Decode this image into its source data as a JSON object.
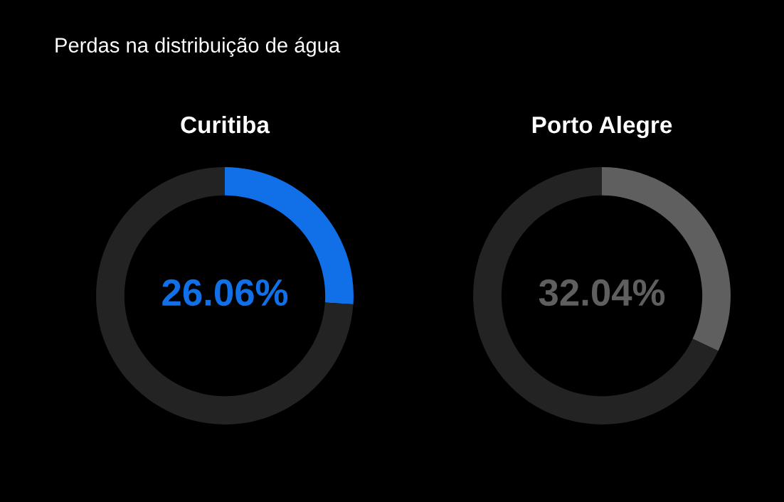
{
  "chart_data": [
    {
      "type": "donut",
      "title": "Curitiba",
      "annotations": [
        "Perdas na distribuição de água"
      ],
      "categories": [
        null,
        null
      ],
      "values": [
        26.06,
        73.94
      ],
      "colors": [
        "#1170e8",
        "#232323"
      ],
      "value_labels": [
        "26.06%",
        null
      ]
    },
    {
      "type": "donut",
      "title": "Porto Alegre",
      "categories": [
        null,
        null
      ],
      "values": [
        32.04,
        67.96
      ],
      "colors": [
        "#5f5f5f",
        "#232323"
      ],
      "value_labels": [
        "32.04%",
        null
      ]
    }
  ]
}
